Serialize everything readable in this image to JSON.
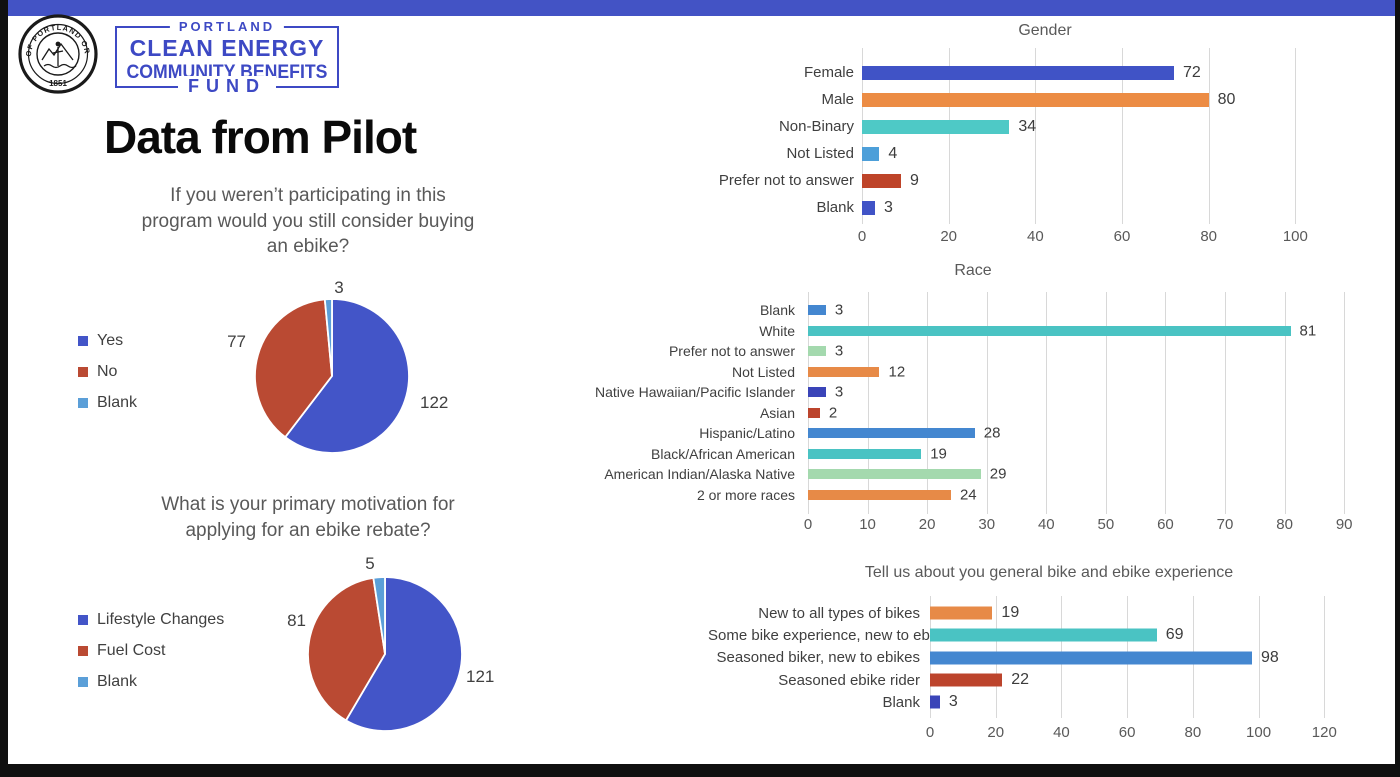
{
  "slide": {
    "top_bar_color": "#4353C5",
    "background_color": "#ffffff",
    "frame_color": "#101010"
  },
  "logo": {
    "seal_ring_text": "CITY OF PORTLAND OREGON",
    "seal_year": "1851",
    "brand_color": "#3D49C4",
    "wordmark": {
      "line1": "PORTLAND",
      "line2": "CLEAN ENERGY",
      "line3": "COMMUNITY BENEFITS",
      "line4": "FUND"
    }
  },
  "title": "Data from Pilot",
  "chart_data": [
    {
      "type": "pie",
      "title": "If you weren’t participating in this program would you still consider buying an ebike?",
      "title_lines": [
        "If you weren’t participating in this",
        "program would you still consider buying",
        "an ebike?"
      ],
      "labels": [
        "Yes",
        "No",
        "Blank"
      ],
      "values": [
        122,
        77,
        3
      ],
      "colors": [
        "#4355C8",
        "#BA4A33",
        "#5B9FD8"
      ],
      "legend_position": "left",
      "start_angle_deg": 0,
      "direction": "clockwise"
    },
    {
      "type": "pie",
      "title": "What is your primary motivation for applying for an ebike rebate?",
      "title_lines": [
        "What is your primary motivation for",
        "applying for an ebike rebate?"
      ],
      "labels": [
        "Lifestyle Changes",
        "Fuel Cost",
        "Blank"
      ],
      "values": [
        121,
        81,
        5
      ],
      "colors": [
        "#4355C8",
        "#BA4A33",
        "#5B9FD8"
      ],
      "legend_position": "left",
      "start_angle_deg": 0,
      "direction": "clockwise"
    },
    {
      "type": "bar",
      "orientation": "horizontal",
      "title": "Gender",
      "categories": [
        "Female",
        "Male",
        "Non-Binary",
        "Not Listed",
        "Prefer not to answer",
        "Blank"
      ],
      "values": [
        72,
        80,
        34,
        4,
        9,
        3
      ],
      "colors": [
        "#4053C6",
        "#EC8C44",
        "#4EC9C6",
        "#4D9FD9",
        "#BE4429",
        "#4053C6"
      ],
      "xlim": [
        0,
        120
      ],
      "xticks": [
        0,
        20,
        40,
        60,
        80,
        100
      ],
      "grid": true,
      "data_labels": true
    },
    {
      "type": "bar",
      "orientation": "horizontal",
      "title": "Race",
      "categories": [
        "Blank",
        "White",
        "Prefer not to answer",
        "Not Listed",
        "Native Hawaiian/Pacific Islander",
        "Asian",
        "Hispanic/Latino",
        "Black/African American",
        "American Indian/Alaska Native",
        "2 or more races"
      ],
      "values": [
        3,
        81,
        3,
        12,
        3,
        2,
        28,
        19,
        29,
        24
      ],
      "colors": [
        "#4487D0",
        "#4AC3C3",
        "#A4D9AE",
        "#E78A47",
        "#3A44B8",
        "#BC442C",
        "#4487D0",
        "#4AC3C3",
        "#A4D9AE",
        "#E78A47"
      ],
      "xlim": [
        0,
        94
      ],
      "xticks": [
        0,
        10,
        20,
        30,
        40,
        50,
        60,
        70,
        80,
        90
      ],
      "grid": true,
      "data_labels": true
    },
    {
      "type": "bar",
      "orientation": "horizontal",
      "title": "Tell us about you general bike and ebike experience",
      "categories": [
        "New to all types of bikes",
        "Some bike experience, new to ebikes",
        "Seasoned biker, new to ebikes",
        "Seasoned ebike rider",
        "Blank"
      ],
      "values": [
        19,
        69,
        98,
        22,
        3
      ],
      "colors": [
        "#E78A47",
        "#4AC3C3",
        "#4487D0",
        "#BC442C",
        "#3A44B8"
      ],
      "xlim": [
        0,
        140
      ],
      "xticks": [
        0,
        20,
        40,
        60,
        80,
        100,
        120
      ],
      "grid": true,
      "data_labels": true
    }
  ]
}
